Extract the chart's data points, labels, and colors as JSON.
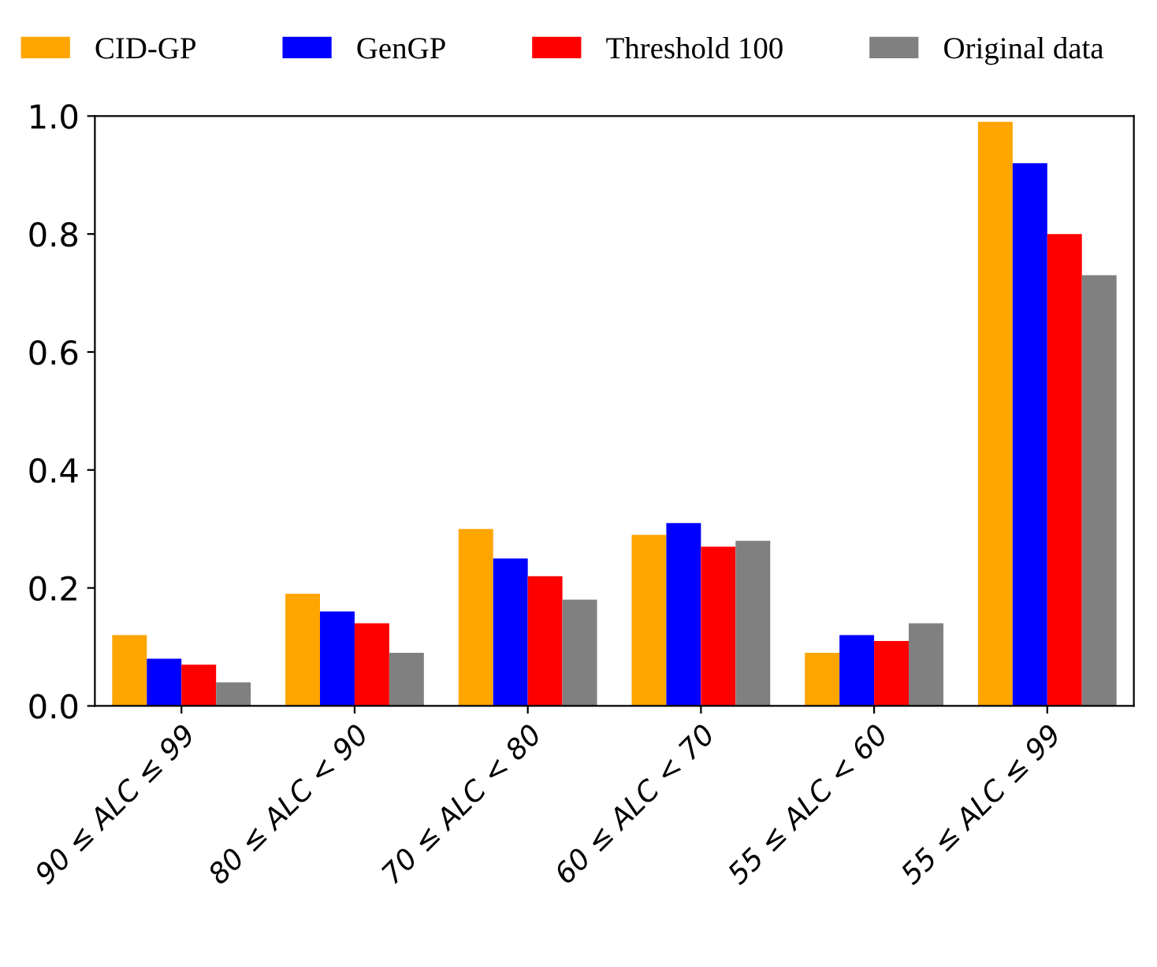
{
  "chart_data": {
    "type": "bar",
    "categories": [
      "90 ≤ ALC ≤ 99",
      "80 ≤ ALC < 90",
      "70 ≤ ALC < 80",
      "60 ≤ ALC < 70",
      "55 ≤ ALC < 60",
      "55 ≤ ALC ≤ 99"
    ],
    "series": [
      {
        "name": "CID-GP",
        "color": "#ffa500",
        "values": [
          0.12,
          0.19,
          0.3,
          0.29,
          0.09,
          0.99
        ]
      },
      {
        "name": "GenGP",
        "color": "#0000ff",
        "values": [
          0.08,
          0.16,
          0.25,
          0.31,
          0.12,
          0.92
        ]
      },
      {
        "name": "Threshold 100",
        "color": "#ff0000",
        "values": [
          0.07,
          0.14,
          0.22,
          0.27,
          0.11,
          0.8
        ]
      },
      {
        "name": "Original data",
        "color": "#808080",
        "values": [
          0.04,
          0.09,
          0.18,
          0.28,
          0.14,
          0.73
        ]
      }
    ],
    "ylim": [
      0,
      1.0
    ],
    "yticks": [
      {
        "value": 0,
        "label": "0.0"
      },
      {
        "value": 0.2,
        "label": "0.2"
      },
      {
        "value": 0.4,
        "label": "0.4"
      },
      {
        "value": 0.6,
        "label": "0.6"
      },
      {
        "value": 0.8,
        "label": "0.8"
      },
      {
        "value": 1.0,
        "label": "1.0"
      }
    ],
    "grid": false,
    "legend": "top"
  }
}
